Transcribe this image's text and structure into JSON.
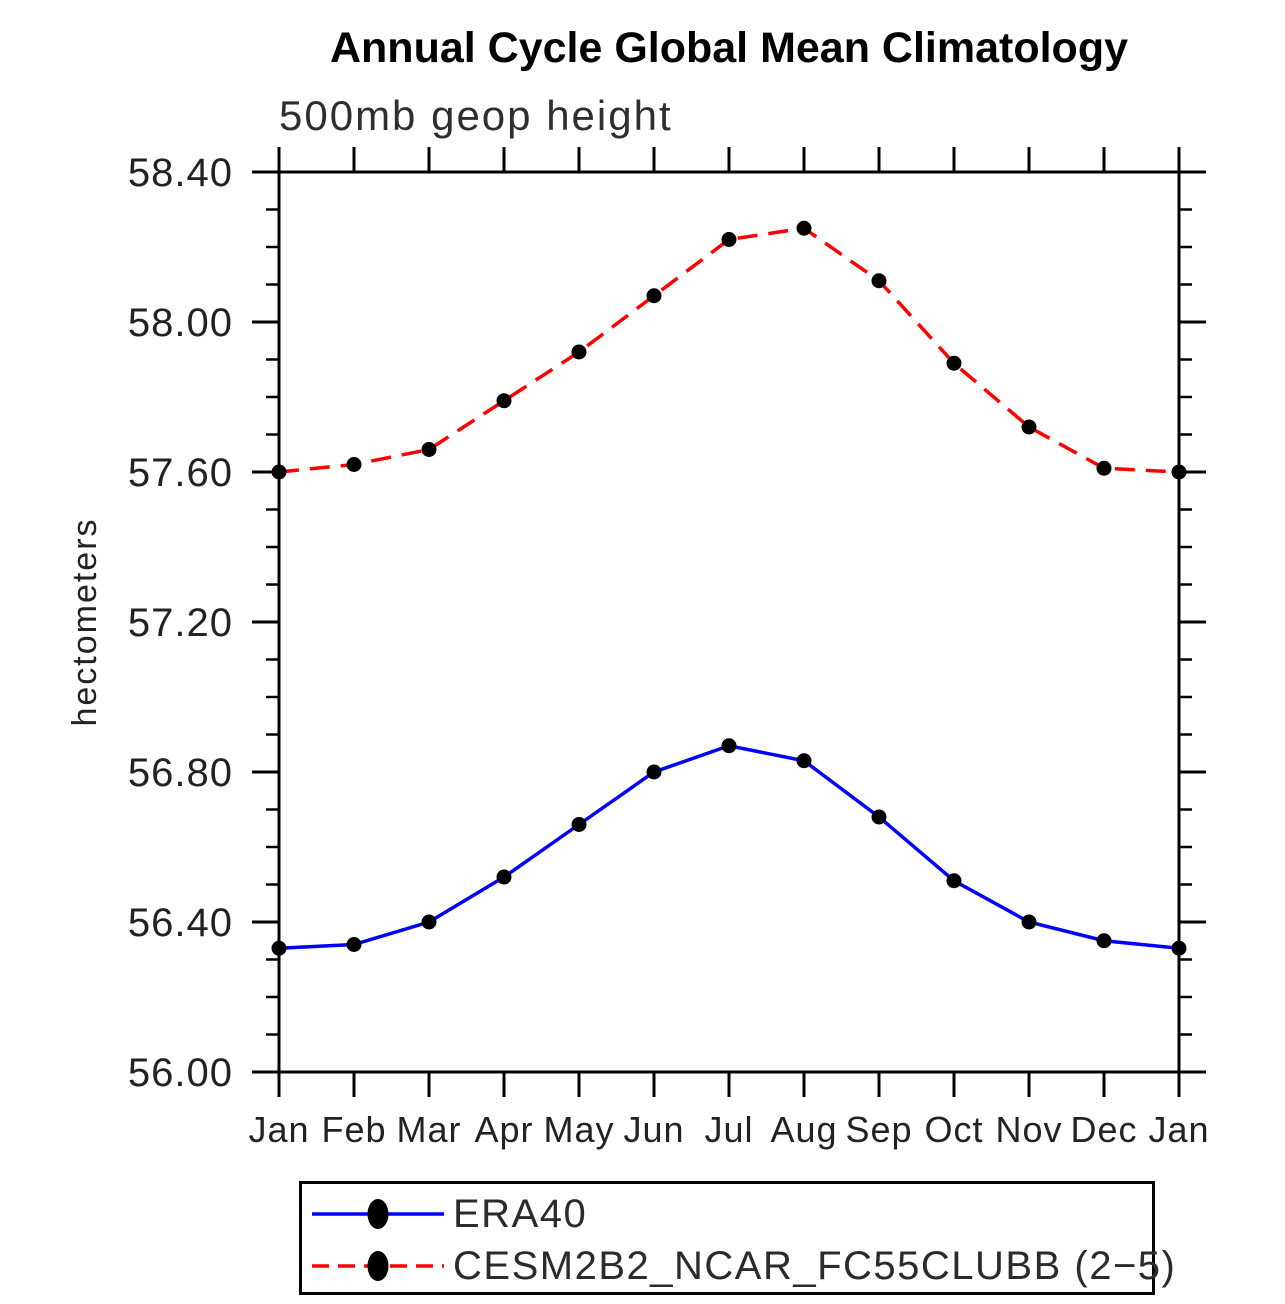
{
  "page": {
    "background": "#ffffff"
  },
  "chart_data": {
    "type": "line",
    "title": "Annual Cycle Global Mean Climatology",
    "subtitle": "500mb geop height",
    "ylabel": "hectometers",
    "categories": [
      "Jan",
      "Feb",
      "Mar",
      "Apr",
      "May",
      "Jun",
      "Jul",
      "Aug",
      "Sep",
      "Oct",
      "Nov",
      "Dec",
      "Jan"
    ],
    "ylim": [
      56.0,
      58.4
    ],
    "ytick_major": 0.4,
    "ytick_minor": 0.1,
    "ytick_format_decimals": 2,
    "grid": false,
    "legend_position": "bottom-box",
    "axis_color": "#000000",
    "marker_shape": "filled-circle",
    "series": [
      {
        "name": "ERA40",
        "line_color": "#0000ff",
        "line_style": "solid",
        "marker_color": "#000000",
        "values": [
          56.33,
          56.34,
          56.4,
          56.52,
          56.66,
          56.8,
          56.87,
          56.83,
          56.68,
          56.51,
          56.4,
          56.35,
          56.33
        ]
      },
      {
        "name": "CESM2B2_NCAR_FC55CLUBB (2−5)",
        "line_color": "#ff0000",
        "line_style": "dashed",
        "marker_color": "#000000",
        "values": [
          57.6,
          57.62,
          57.66,
          57.79,
          57.92,
          58.07,
          58.22,
          58.25,
          58.11,
          57.89,
          57.72,
          57.61,
          57.6
        ]
      }
    ]
  }
}
